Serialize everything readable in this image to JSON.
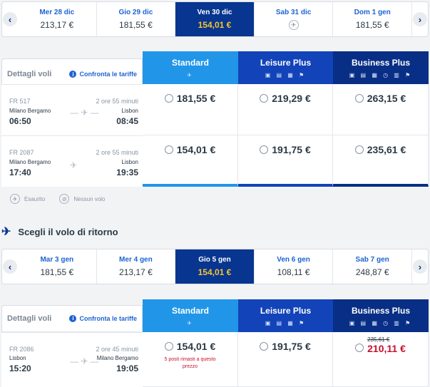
{
  "outbound_dates": [
    {
      "label": "Mer 28 dic",
      "price": "213,17 €"
    },
    {
      "label": "Gio 29 dic",
      "price": "181,55 €"
    },
    {
      "label": "Ven 30 dic",
      "price": "154,01 €",
      "selected": true
    },
    {
      "label": "Sab 31 dic",
      "price": ""
    },
    {
      "label": "Dom 1 gen",
      "price": "181,55 €"
    }
  ],
  "return_dates": [
    {
      "label": "Mar 3 gen",
      "price": "181,55 €"
    },
    {
      "label": "Mer 4 gen",
      "price": "213,17 €"
    },
    {
      "label": "Gio 5 gen",
      "price": "154,01 €",
      "selected": true
    },
    {
      "label": "Ven 6 gen",
      "price": "108,11 €"
    },
    {
      "label": "Sab 7 gen",
      "price": "248,87 €"
    }
  ],
  "flight_details": "Dettagli voli",
  "compare_fares": "Confronta le tariffe",
  "fares": {
    "standard": "Standard",
    "leisure": "Leisure Plus",
    "business": "Business Plus"
  },
  "outbound_flights": [
    {
      "number": "FR 517",
      "duration": "2 ore 55 minuti",
      "from": "Milano Bergamo",
      "to": "Lisbon",
      "dep": "06:50",
      "arr": "08:45",
      "standard": "181,55 €",
      "leisure": "219,29 €",
      "business": "263,15 €"
    },
    {
      "number": "FR 2087",
      "duration": "2 ore 55 minuti",
      "from": "Milano Bergamo",
      "to": "Lisbon",
      "dep": "17:40",
      "arr": "19:35",
      "standard": "154,01 €",
      "leisure": "191,75 €",
      "business": "235,61 €"
    }
  ],
  "legend": {
    "sold_out": "Esaurito",
    "no_flight": "Nessun volo"
  },
  "return_title": "Scegli il volo di ritorno",
  "return_flight": {
    "number": "FR 2086",
    "duration": "2 ore 45 minuti",
    "from": "Lisbon",
    "to": "Milano Bergamo",
    "dep": "15:20",
    "arr": "19:05",
    "standard": "154,01 €",
    "leisure": "191,75 €",
    "business_old": "235,61 €",
    "business": "210,11 €",
    "seats_note_1": "5 posti rimasti a questo",
    "seats_note_2": "prezzo"
  },
  "colors": {
    "standard": "#2196e8",
    "leisure": "#1243b8",
    "business": "#082f85",
    "selected_day": "#073590",
    "selected_price": "#f7c331",
    "promo_red": "#c8102e"
  },
  "icons": [
    "chevron-left-icon",
    "chevron-right-icon",
    "plane-icon",
    "info-icon",
    "no-flight-icon"
  ]
}
